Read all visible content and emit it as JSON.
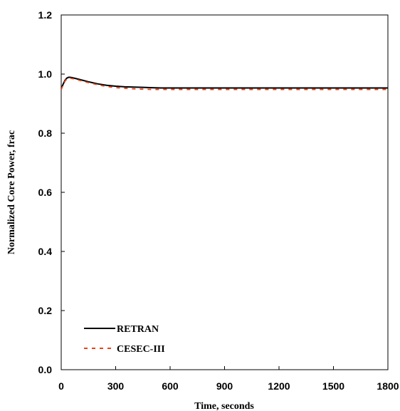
{
  "chart_data": {
    "type": "line",
    "title": "",
    "xlabel": "Time, seconds",
    "ylabel": "Normalized Core Power, frac",
    "xlim": [
      0,
      1800
    ],
    "ylim": [
      0.0,
      1.2
    ],
    "xticks": [
      0,
      300,
      600,
      900,
      1200,
      1500,
      1800
    ],
    "yticks": [
      0.0,
      0.2,
      0.4,
      0.6,
      0.8,
      1.0,
      1.2
    ],
    "xtick_labels": [
      "0",
      "300",
      "600",
      "900",
      "1200",
      "1500",
      "1800"
    ],
    "ytick_labels": [
      "0.0",
      "0.2",
      "0.4",
      "0.6",
      "0.8",
      "1.0",
      "1.2"
    ],
    "grid": false,
    "legend_position": "bottom-left",
    "series": [
      {
        "name": "RETRAN",
        "color": "#000000",
        "style": "solid",
        "x": [
          0,
          10,
          20,
          30,
          40,
          50,
          60,
          80,
          100,
          150,
          200,
          250,
          300,
          350,
          400,
          450,
          500,
          550,
          600,
          700,
          800,
          900,
          1000,
          1200,
          1400,
          1600,
          1800
        ],
        "y": [
          0.95,
          0.965,
          0.978,
          0.986,
          0.989,
          0.989,
          0.988,
          0.985,
          0.982,
          0.974,
          0.967,
          0.962,
          0.959,
          0.957,
          0.956,
          0.955,
          0.954,
          0.953,
          0.953,
          0.953,
          0.953,
          0.953,
          0.953,
          0.953,
          0.953,
          0.953,
          0.953
        ]
      },
      {
        "name": "CESEC-III",
        "color": "#e8431c",
        "style": "dashed",
        "x": [
          0,
          10,
          20,
          30,
          40,
          50,
          60,
          80,
          100,
          150,
          200,
          250,
          300,
          350,
          400,
          450,
          500,
          550,
          600,
          700,
          800,
          900,
          1000,
          1200,
          1400,
          1600,
          1800
        ],
        "y": [
          0.948,
          0.962,
          0.975,
          0.983,
          0.986,
          0.986,
          0.985,
          0.982,
          0.979,
          0.971,
          0.964,
          0.958,
          0.954,
          0.952,
          0.95,
          0.949,
          0.948,
          0.948,
          0.948,
          0.948,
          0.948,
          0.948,
          0.948,
          0.948,
          0.948,
          0.948,
          0.948
        ]
      }
    ]
  }
}
